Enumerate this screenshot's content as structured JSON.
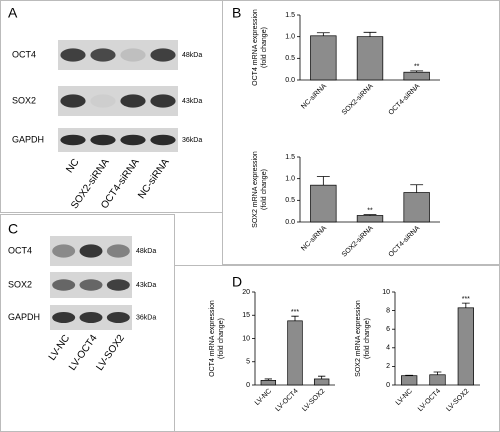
{
  "panel_labels": [
    "A",
    "B",
    "C",
    "D"
  ],
  "blots": [
    {
      "rows": [
        {
          "label": "OCT4",
          "size": "48kDa"
        },
        {
          "label": "SOX2",
          "size": "43kDa"
        },
        {
          "label": "GAPDH",
          "size": "36kDa"
        }
      ],
      "lanes": [
        "NC",
        "SOX2-siRNA",
        "OCT4-siRNA",
        "NC-siRNA"
      ]
    },
    {
      "rows": [
        {
          "label": "OCT4",
          "size": "48kDa"
        },
        {
          "label": "SOX2",
          "size": "43kDa"
        },
        {
          "label": "GAPDH",
          "size": "36kDa"
        }
      ],
      "lanes": [
        "LV-NC",
        "LV-OCT4",
        "LV-SOX2"
      ]
    }
  ],
  "chart_data": [
    {
      "type": "bar",
      "y_label": [
        "OCT4 mRNA expression",
        "(fold change)"
      ],
      "color": "#8c8c8c",
      "categories": [
        "NC-siRNA",
        "SOX2-siRNA",
        "OCT4-siRNA"
      ],
      "values": [
        1.02,
        1.0,
        0.18
      ],
      "errors": [
        0.07,
        0.1,
        0.03
      ],
      "significance": [
        null,
        null,
        "**"
      ],
      "ylim": [
        0,
        1.5
      ],
      "yticks": [
        {
          "value": 0,
          "label": "0.0"
        },
        {
          "value": 0.5,
          "label": "0.5"
        },
        {
          "value": 1,
          "label": "1.0"
        },
        {
          "value": 1.5,
          "label": "1.5"
        }
      ]
    },
    {
      "type": "bar",
      "y_label": [
        "SOX2 mRNA expression",
        "(fold change)"
      ],
      "color": "#8c8c8c",
      "categories": [
        "NC-siRNA",
        "SOX2-siRNA",
        "OCT4-siRNA"
      ],
      "values": [
        0.85,
        0.15,
        0.68
      ],
      "errors": [
        0.2,
        0.02,
        0.18
      ],
      "significance": [
        null,
        "**",
        null
      ],
      "ylim": [
        0,
        1.5
      ],
      "yticks": [
        {
          "value": 0,
          "label": "0.0"
        },
        {
          "value": 0.5,
          "label": "0.5"
        },
        {
          "value": 1,
          "label": "1.0"
        },
        {
          "value": 1.5,
          "label": "1.5"
        }
      ]
    },
    {
      "type": "bar",
      "y_label": [
        "OCT4 mRNA expression",
        "(fold change)"
      ],
      "color": "#8c8c8c",
      "categories": [
        "LV-NC",
        "LV-OCT4",
        "LV-SOX2"
      ],
      "values": [
        1,
        13.8,
        1.3
      ],
      "errors": [
        0.3,
        1,
        0.6
      ],
      "significance": [
        null,
        "***",
        null
      ],
      "ylim": [
        0,
        20
      ],
      "yticks": [
        0,
        5,
        10,
        15,
        20
      ]
    },
    {
      "type": "bar",
      "y_label": [
        "SOX2 mRNA expression",
        "(fold change)"
      ],
      "color": "#8c8c8c",
      "categories": [
        "LV-NC",
        "LV-OCT4",
        "LV-SOX2"
      ],
      "values": [
        1,
        1.1,
        8.3
      ],
      "errors": [
        0.05,
        0.3,
        0.5
      ],
      "significance": [
        null,
        null,
        "***"
      ],
      "ylim": [
        0,
        10
      ],
      "yticks": [
        0,
        2,
        4,
        6,
        8,
        10
      ]
    }
  ]
}
